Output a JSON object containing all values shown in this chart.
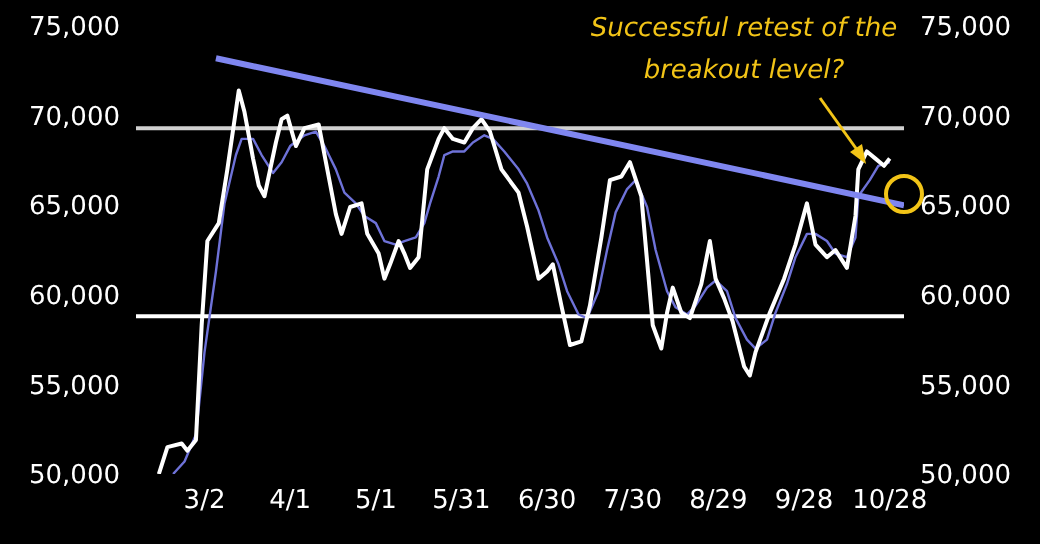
{
  "chart_data": {
    "type": "line",
    "marker": "none",
    "line_style": "solid",
    "xlim": [
      "--02-07",
      "--11-02"
    ],
    "xticks": [
      {
        "value": "--03-02",
        "label": "3/2"
      },
      {
        "value": "--04-01",
        "label": "4/1"
      },
      {
        "value": "--05-01",
        "label": "5/1"
      },
      {
        "value": "--05-31",
        "label": "5/31"
      },
      {
        "value": "--06-30",
        "label": "6/30"
      },
      {
        "value": "--07-30",
        "label": "7/30"
      },
      {
        "value": "--08-29",
        "label": "8/29"
      },
      {
        "value": "--09-28",
        "label": "9/28"
      },
      {
        "value": "--10-28",
        "label": "10/28"
      }
    ],
    "ylim": [
      50000,
      75000
    ],
    "yticks": [
      {
        "value": 50000,
        "label": "50,000"
      },
      {
        "value": 55000,
        "label": "55,000"
      },
      {
        "value": 60000,
        "label": "60,000"
      },
      {
        "value": 65000,
        "label": "65,000"
      },
      {
        "value": 70000,
        "label": "70,000"
      },
      {
        "value": 75000,
        "label": "75,000"
      }
    ],
    "y2lim": [
      50000,
      75000
    ],
    "y2ticks": [
      {
        "value": 50000,
        "label": "50,000"
      },
      {
        "value": 55000,
        "label": "55,000"
      },
      {
        "value": 60000,
        "label": "60,000"
      },
      {
        "value": 65000,
        "label": "65,000"
      },
      {
        "value": 70000,
        "label": "70,000"
      },
      {
        "value": 75000,
        "label": "75,000"
      }
    ],
    "ref_lines": [
      {
        "axis": "y",
        "value": 69300,
        "color": "#d0d0d0"
      },
      {
        "axis": "y",
        "value": 58800,
        "color": "#ffffff"
      }
    ],
    "annotations": [
      "Successful retest of the breakout level?"
    ],
    "series": [
      {
        "color": "#6e72d8",
        "x": [
          "--02-20",
          "--02-24",
          "--02-28",
          "--03-02",
          "--03-06",
          "--03-09",
          "--03-13",
          "--03-15",
          "--03-19",
          "--03-22",
          "--03-26",
          "--03-29",
          "--04-01",
          "--04-06",
          "--04-10",
          "--04-13",
          "--04-17",
          "--04-20",
          "--04-24",
          "--04-27",
          "--05-01",
          "--05-04",
          "--05-08",
          "--05-11",
          "--05-15",
          "--05-18",
          "--05-20",
          "--05-23",
          "--05-25",
          "--05-28",
          "--06-01",
          "--06-04",
          "--06-08",
          "--06-11",
          "--06-15",
          "--06-20",
          "--06-23",
          "--06-27",
          "--06-30",
          "--07-04",
          "--07-07",
          "--07-11",
          "--07-14",
          "--07-18",
          "--07-21",
          "--07-24",
          "--07-28",
          "--07-31",
          "--08-04",
          "--08-07",
          "--08-11",
          "--08-14",
          "--08-18",
          "--08-21",
          "--08-25",
          "--08-28",
          "--09-01",
          "--09-04",
          "--09-08",
          "--09-11",
          "--09-15",
          "--09-18",
          "--09-22",
          "--09-25",
          "--09-29",
          "--10-02",
          "--10-06",
          "--10-09",
          "--10-13",
          "--10-16",
          "--10-17",
          "--10-21",
          "--10-24",
          "--10-28"
        ],
        "values": [
          50000,
          50700,
          52200,
          56800,
          61300,
          65100,
          67800,
          68700,
          68700,
          67800,
          66800,
          67400,
          68300,
          68900,
          69100,
          68300,
          67000,
          65700,
          65100,
          64400,
          64000,
          63000,
          62800,
          63000,
          63200,
          64000,
          65100,
          66600,
          67800,
          68000,
          68000,
          68500,
          68900,
          68700,
          68000,
          67000,
          66200,
          64700,
          63200,
          61700,
          60200,
          58900,
          58700,
          60200,
          62500,
          64600,
          65900,
          66400,
          64900,
          62500,
          60200,
          59300,
          58900,
          59400,
          60400,
          60800,
          60200,
          58700,
          57500,
          57000,
          57500,
          59000,
          60600,
          62100,
          63400,
          63400,
          63000,
          62300,
          62100,
          63200,
          65500,
          66400,
          67200,
          67400
        ]
      },
      {
        "color": "#ffffff",
        "x": [
          "--02-15",
          "--02-18",
          "--02-23",
          "--02-25",
          "--02-28",
          "--03-01",
          "--03-03",
          "--03-07",
          "--03-10",
          "--03-14",
          "--03-16",
          "--03-19",
          "--03-21",
          "--03-23",
          "--03-27",
          "--03-29",
          "--03-31",
          "--04-03",
          "--04-06",
          "--04-11",
          "--04-14",
          "--04-17",
          "--04-19",
          "--04-22",
          "--04-26",
          "--04-28",
          "--05-02",
          "--05-04",
          "--05-06",
          "--05-09",
          "--05-11",
          "--05-13",
          "--05-16",
          "--05-19",
          "--05-23",
          "--05-25",
          "--05-28",
          "--06-01",
          "--06-04",
          "--06-07",
          "--06-10",
          "--06-14",
          "--06-20",
          "--06-23",
          "--06-27",
          "--06-30",
          "--07-02",
          "--07-05",
          "--07-08",
          "--07-12",
          "--07-15",
          "--07-19",
          "--07-22",
          "--07-26",
          "--07-29",
          "--08-02",
          "--08-06",
          "--08-09",
          "--08-11",
          "--08-13",
          "--08-16",
          "--08-19",
          "--08-23",
          "--08-26",
          "--08-28",
          "--08-31",
          "--09-03",
          "--09-07",
          "--09-09",
          "--09-11",
          "--09-16",
          "--09-21",
          "--09-25",
          "--09-29",
          "--10-02",
          "--10-06",
          "--10-09",
          "--10-13",
          "--10-16",
          "--10-17",
          "--10-20",
          "--10-23",
          "--10-26",
          "--10-28"
        ],
        "values": [
          50000,
          51500,
          51700,
          51300,
          51900,
          58300,
          63000,
          64000,
          67000,
          71400,
          70200,
          67600,
          66100,
          65500,
          68500,
          69800,
          70000,
          68300,
          69300,
          69500,
          67000,
          64500,
          63400,
          64900,
          65100,
          63400,
          62300,
          60900,
          61700,
          63000,
          62300,
          61500,
          62100,
          67000,
          68700,
          69300,
          68700,
          68500,
          69300,
          69800,
          69100,
          67000,
          65700,
          63800,
          60900,
          61300,
          61700,
          59400,
          57200,
          57400,
          59400,
          63200,
          66400,
          66600,
          67400,
          65500,
          58300,
          57000,
          59000,
          60400,
          59000,
          58700,
          60600,
          63000,
          60900,
          59800,
          58500,
          56000,
          55500,
          56800,
          59000,
          60900,
          62800,
          65100,
          62800,
          62100,
          62500,
          61500,
          64400,
          67000,
          68000,
          67600,
          67200,
          67600
        ]
      },
      {
        "color": "#7f86f0",
        "x": [
          "--03-06",
          "--11-02"
        ],
        "values": [
          73200,
          65000
        ]
      }
    ]
  }
}
